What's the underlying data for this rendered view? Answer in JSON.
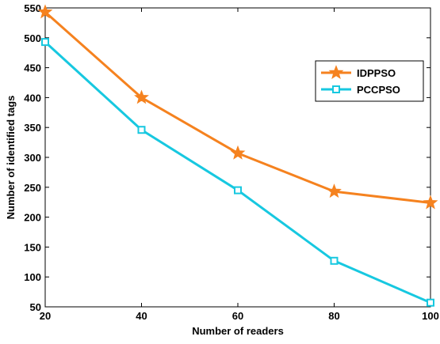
{
  "chart_data": {
    "type": "line",
    "title": "",
    "xlabel": "Number of readers",
    "ylabel": "Number of identified tags",
    "x": [
      20,
      40,
      60,
      80,
      100
    ],
    "xlim": [
      20,
      100
    ],
    "ylim": [
      50,
      550
    ],
    "xticks": [
      "20",
      "40",
      "60",
      "80",
      "100"
    ],
    "yticks": [
      "50",
      "100",
      "150",
      "200",
      "250",
      "300",
      "350",
      "400",
      "450",
      "500",
      "550"
    ],
    "grid": false,
    "legend_position": "upper-right",
    "series": [
      {
        "name": "IDPPSO",
        "values": [
          543,
          400,
          307,
          243,
          224
        ],
        "color": "#f5821f",
        "marker": "star"
      },
      {
        "name": "PCCPSO",
        "values": [
          493,
          346,
          245,
          127,
          57
        ],
        "color": "#17c8e0",
        "marker": "square"
      }
    ]
  }
}
